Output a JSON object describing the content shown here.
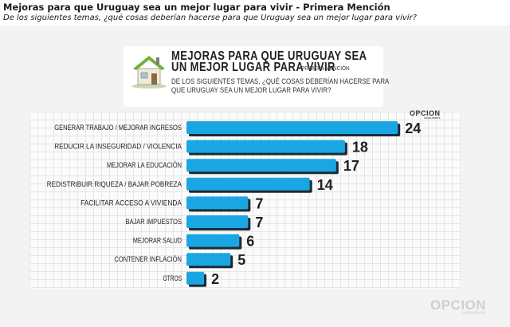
{
  "header": {
    "title": "Mejoras para que Uruguay sea un mejor lugar para vivir  - Primera Mención",
    "subtitle": "De los siguientes temas, ¿qué cosas deberían hacerse para que Uruguay sea un mejor lugar para vivir?"
  },
  "chart_data": {
    "type": "bar",
    "orientation": "horizontal",
    "title": "MEJORAS PARA QUE URUGUAY SEA UN MEJOR LUGAR PARA VIVIR",
    "title_note": "PRIMERA MENCIÓN",
    "subtitle": "DE LOS SIGUIENTES TEMAS, ¿QUÉ COSAS DEBERÍAN HACERSE PARA QUE URUGUAY SEA UN MEJOR LUGAR PARA VIVIR?",
    "categories": [
      "GENERAR TRABAJO / MEJORAR INGRESOS",
      "REDUCIR LA INSEGURIDAD / VIOLENCIA",
      "MEJORAR LA EDUCACIÓN",
      "REDISTRIBUIR RIQUEZA / BAJAR POBREZA",
      "FACILITAR ACCESO A VIVIENDA",
      "BAJAR IMPUESTOS",
      "MEJORAR SALUD",
      "CONTENER INFLACIÓN",
      "OTROS"
    ],
    "values": [
      24,
      18,
      17,
      14,
      7,
      7,
      6,
      5,
      2
    ],
    "xlim": [
      0,
      26
    ],
    "grid": true,
    "legend": "none",
    "bar_color": "#1aa6e2",
    "bar_shadow_color": "#1c2b36"
  },
  "branding": {
    "logo_text": "OPCION",
    "logo_sub": "consultores"
  }
}
